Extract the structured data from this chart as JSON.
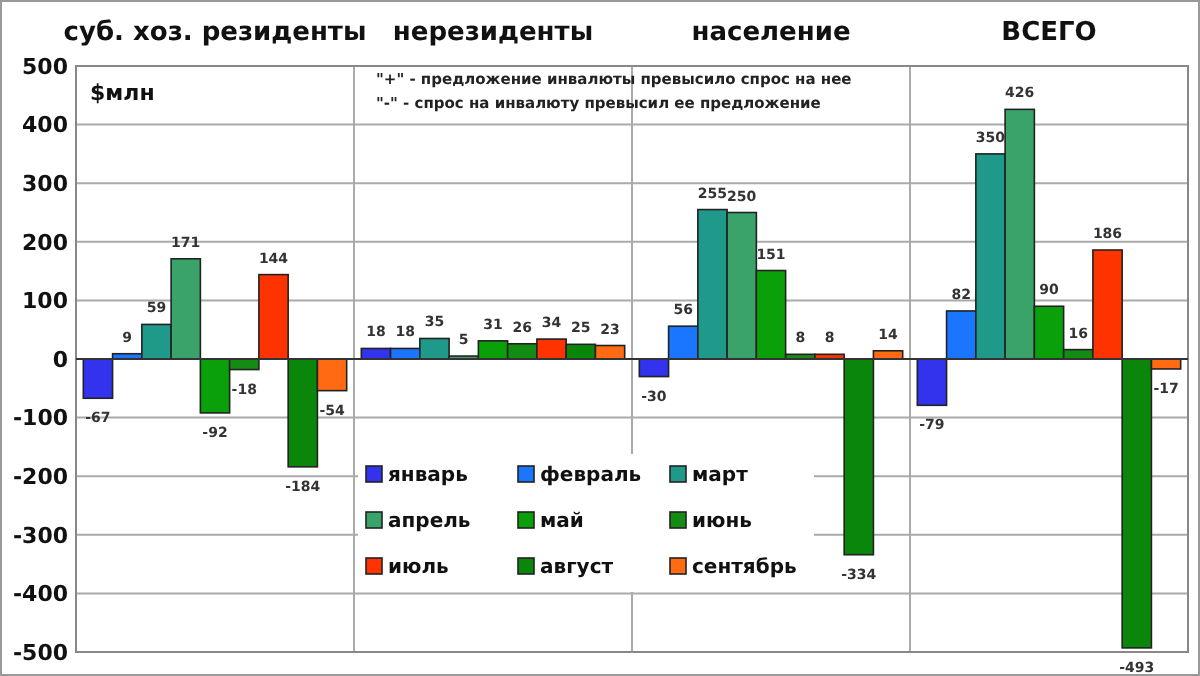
{
  "chart_data": {
    "type": "bar",
    "categories": [
      "суб. хоз. резиденты",
      "нерезиденты",
      "население",
      "ВСЕГО"
    ],
    "series": [
      {
        "name": "январь",
        "color": "#3333ee",
        "values": [
          -67,
          18,
          -30,
          -79
        ]
      },
      {
        "name": "февраль",
        "color": "#1a75ff",
        "values": [
          9,
          18,
          56,
          82
        ]
      },
      {
        "name": "март",
        "color": "#1f9a8a",
        "values": [
          59,
          35,
          255,
          350
        ]
      },
      {
        "name": "апрель",
        "color": "#3aa36a",
        "values": [
          171,
          5,
          250,
          426
        ]
      },
      {
        "name": "май",
        "color": "#0aa00a",
        "values": [
          -92,
          31,
          151,
          90
        ]
      },
      {
        "name": "июнь",
        "color": "#148c14",
        "values": [
          -18,
          26,
          8,
          16
        ]
      },
      {
        "name": "июль",
        "color": "#ff3300",
        "values": [
          144,
          34,
          8,
          186
        ]
      },
      {
        "name": "август",
        "color": "#0a860a",
        "values": [
          -184,
          25,
          -334,
          -493
        ]
      },
      {
        "name": "сентябрь",
        "color": "#ff6a13",
        "values": [
          -54,
          23,
          14,
          -17
        ]
      }
    ],
    "ylim": [
      -500,
      500
    ],
    "yticks": [
      -500,
      -400,
      -300,
      -200,
      -100,
      0,
      100,
      200,
      300,
      400,
      500
    ],
    "grid": true,
    "legend": "bottom",
    "data_labels": true,
    "annotations": [
      "$млн",
      "\"+\" - предложение инвалюты превысило спрос на нее",
      "\"-\" - спрос на инвалюту превысил ее предложение"
    ]
  }
}
